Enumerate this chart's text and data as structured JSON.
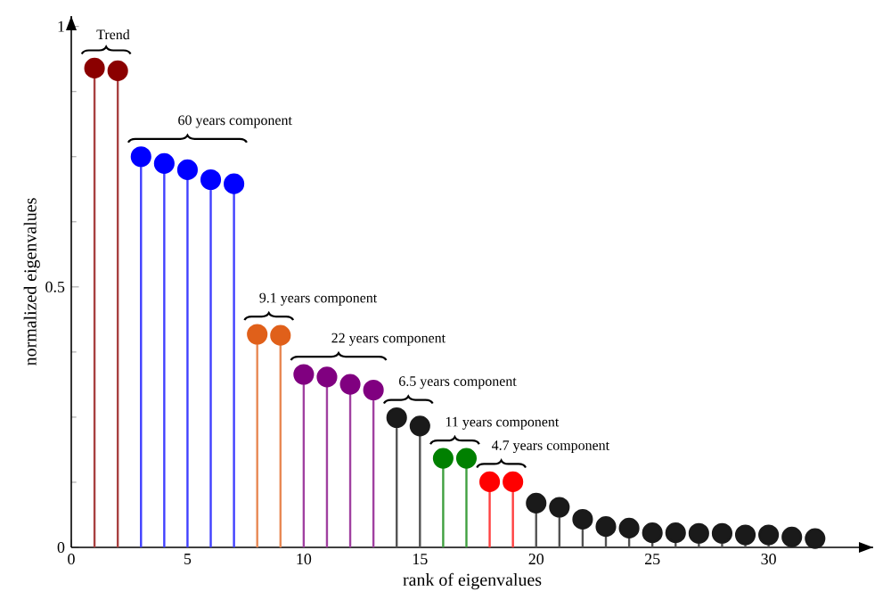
{
  "chart_data": {
    "type": "lollipop",
    "xlabel": "rank of eigenvalues",
    "ylabel": "normalized eigenvalues",
    "xlim": [
      0,
      34.5
    ],
    "ylim": [
      0,
      1.02
    ],
    "xticks": [
      0,
      5,
      10,
      15,
      20,
      25,
      30
    ],
    "yticks": [
      0,
      0.5,
      1
    ],
    "marker": "circle",
    "line_style": "solid",
    "grid": false,
    "series": [
      {
        "color": "#8b0000",
        "x": [
          1,
          2
        ],
        "values": [
          0.92,
          0.915
        ]
      },
      {
        "color": "#0000ff",
        "x": [
          3,
          4,
          5,
          6,
          7
        ],
        "values": [
          0.75,
          0.737,
          0.725,
          0.706,
          0.698
        ]
      },
      {
        "color": "#e0601a",
        "x": [
          8,
          9
        ],
        "values": [
          0.409,
          0.407
        ]
      },
      {
        "color": "#800080",
        "x": [
          10,
          11,
          12,
          13
        ],
        "values": [
          0.332,
          0.327,
          0.313,
          0.302
        ]
      },
      {
        "color": "#1a1a1a",
        "x": [
          14,
          15
        ],
        "values": [
          0.249,
          0.233
        ]
      },
      {
        "color": "#008000",
        "x": [
          16,
          17
        ],
        "values": [
          0.171,
          0.171
        ]
      },
      {
        "color": "#ff0000",
        "x": [
          18,
          19
        ],
        "values": [
          0.126,
          0.126
        ]
      },
      {
        "color": "#1a1a1a",
        "x": [
          20,
          21,
          22,
          23,
          24,
          25,
          26,
          27,
          28,
          29,
          30,
          31,
          32
        ],
        "values": [
          0.085,
          0.077,
          0.054,
          0.04,
          0.037,
          0.028,
          0.028,
          0.027,
          0.027,
          0.024,
          0.024,
          0.02,
          0.017
        ]
      }
    ],
    "annotations": [
      "Trend",
      "60 years component",
      "9.1 years component",
      "22 years component",
      "6.5 years component",
      "11 years component",
      "4.7 years component"
    ]
  }
}
